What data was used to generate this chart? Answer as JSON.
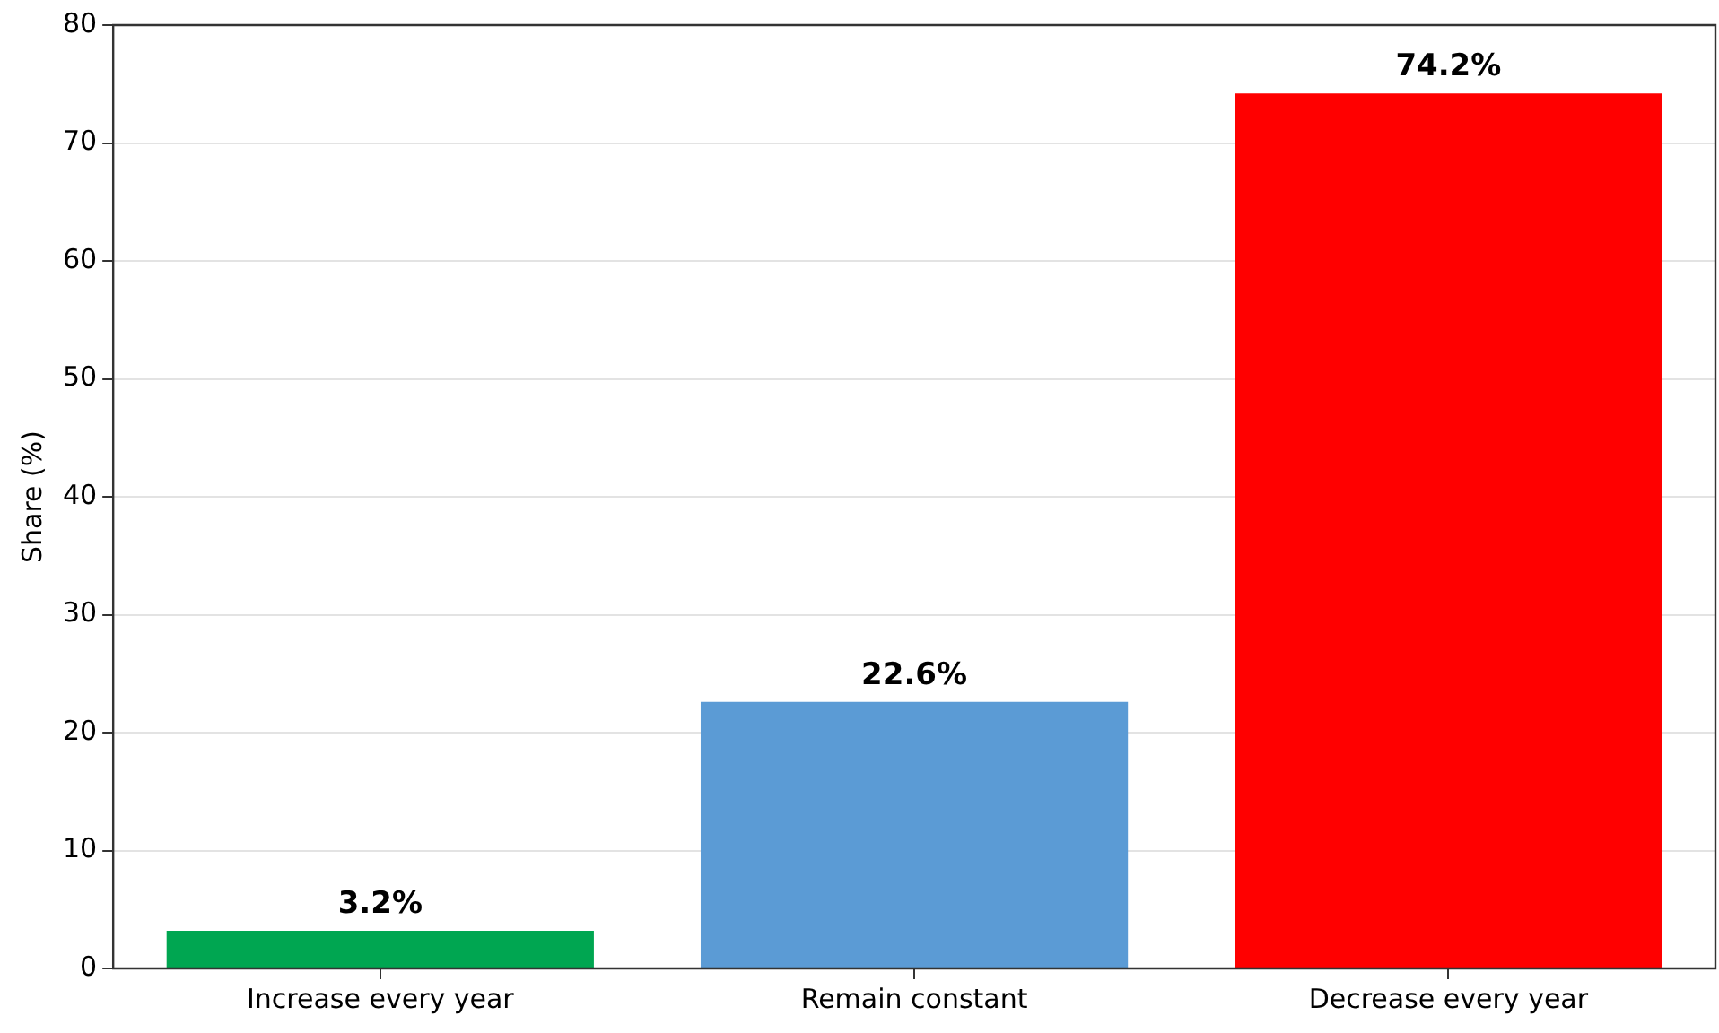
{
  "chart_data": {
    "type": "bar",
    "ylabel": "Share (%)",
    "categories": [
      "Increase every year",
      "Remain constant",
      "Decrease every year"
    ],
    "values": [
      3.2,
      22.6,
      74.2
    ],
    "colors": [
      "#00a651",
      "#5b9bd5",
      "#ff0000"
    ],
    "value_labels": [
      "3.2%",
      "22.6%",
      "74.2%"
    ],
    "ylim": [
      0,
      80
    ],
    "yticks": [
      0,
      10,
      20,
      30,
      40,
      50,
      60,
      70,
      80
    ],
    "grid": "y",
    "legend": false
  }
}
